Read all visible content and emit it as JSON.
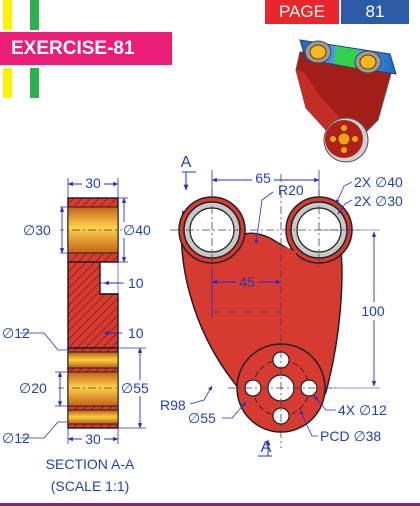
{
  "header": {
    "title": "EXERCISE-81",
    "page_label": "PAGE",
    "page_number": "81"
  },
  "colors": {
    "red_body": "#d73a31",
    "outline": "#222222",
    "title_bg": "#ea1e79",
    "page_red": "#e8262b",
    "page_blue": "#2d5aa6",
    "strip_yellow": "#fff200",
    "strip_green": "#2bb24c",
    "dim_line": "#2b2bd1",
    "dim_text": "#1f3fbf",
    "hole_gray": "#c8c8c8",
    "bearing_orange": "#f7a51c"
  },
  "section": {
    "dim_top_width": "30",
    "dia_left": "∅30",
    "dia_right": "∅40",
    "dim_10_upper": "10",
    "dim_10_lower": "10",
    "dia_12_top": "∅12",
    "dia_20": "∅20",
    "dia_55": "∅55",
    "dia_12_bottom": "∅12",
    "dim_bottom_width": "30",
    "caption_1": "SECTION A-A",
    "caption_2": "(SCALE 1:1)"
  },
  "front": {
    "section_mark_top": "A",
    "section_mark_bottom": "A",
    "dim_65": "65",
    "r20": "R20",
    "holes_40": "2X ∅40",
    "holes_30": "2X ∅30",
    "dim_45": "45",
    "dim_100": "100",
    "r98": "R98",
    "dia_55": "∅55",
    "small_holes": "4X ∅12",
    "pcd": "PCD ∅38"
  }
}
